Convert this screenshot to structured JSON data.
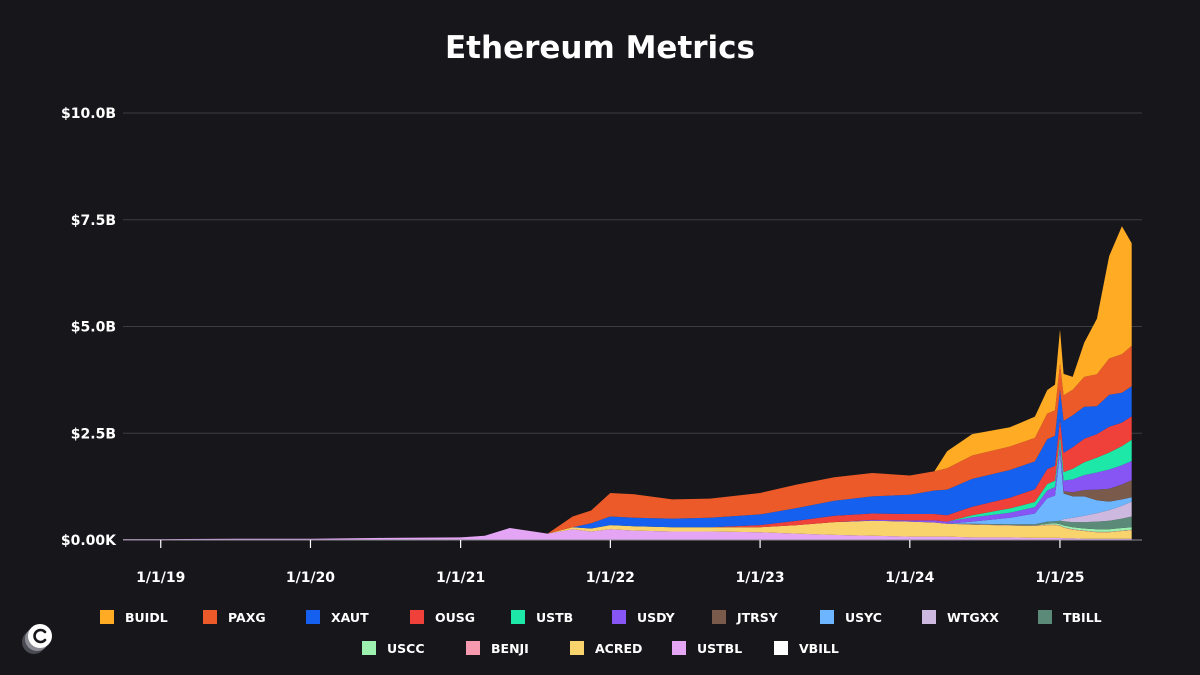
{
  "chart_data": {
    "type": "area",
    "title": "Ethereum Metrics",
    "xlabel": "",
    "ylabel": "",
    "stacked": true,
    "x_tick_labels": [
      "1/1/19",
      "1/1/20",
      "1/1/21",
      "1/1/22",
      "1/1/23",
      "1/1/24",
      "1/1/25"
    ],
    "y_tick_labels": [
      "$0.00K",
      "$2.5B",
      "$5.0B",
      "$7.5B",
      "$10.0B"
    ],
    "y_ticks": [
      0,
      2.5,
      5,
      7.5,
      10
    ],
    "ylim": [
      0,
      10
    ],
    "y_unit": "billions USD",
    "x": [
      "2018-10-01",
      "2019-01-01",
      "2019-07-01",
      "2020-01-01",
      "2020-07-01",
      "2021-01-01",
      "2021-03-01",
      "2021-05-01",
      "2021-08-01",
      "2021-10-01",
      "2021-11-15",
      "2022-01-01",
      "2022-03-01",
      "2022-06-01",
      "2022-09-01",
      "2023-01-01",
      "2023-04-01",
      "2023-07-01",
      "2023-10-01",
      "2024-01-01",
      "2024-03-01",
      "2024-04-01",
      "2024-06-01",
      "2024-09-01",
      "2024-11-01",
      "2024-12-01",
      "2024-12-20",
      "2025-01-01",
      "2025-01-10",
      "2025-02-01",
      "2025-03-01",
      "2025-04-01",
      "2025-05-01",
      "2025-06-01",
      "2025-06-25"
    ],
    "grid": true,
    "legend_position": "bottom",
    "series": [
      {
        "name": "USTBL",
        "color": "#e4a5f5",
        "values": [
          0.02,
          0.02,
          0.03,
          0.03,
          0.05,
          0.06,
          0.1,
          0.28,
          0.15,
          0.25,
          0.2,
          0.25,
          0.22,
          0.2,
          0.2,
          0.18,
          0.15,
          0.12,
          0.1,
          0.08,
          0.08,
          0.08,
          0.06,
          0.06,
          0.05,
          0.05,
          0.05,
          0.05,
          0.04,
          0.04,
          0.03,
          0.03,
          0.03,
          0.03,
          0.03
        ]
      },
      {
        "name": "ACRED",
        "color": "#f9d36b",
        "values": [
          0,
          0,
          0,
          0,
          0,
          0,
          0,
          0,
          0,
          0.05,
          0.07,
          0.1,
          0.1,
          0.1,
          0.1,
          0.12,
          0.2,
          0.3,
          0.35,
          0.35,
          0.33,
          0.3,
          0.3,
          0.28,
          0.28,
          0.3,
          0.3,
          0.28,
          0.25,
          0.2,
          0.18,
          0.15,
          0.15,
          0.18,
          0.2
        ]
      },
      {
        "name": "BENJI",
        "color": "#f79aaf",
        "values": [
          0,
          0,
          0,
          0,
          0,
          0,
          0,
          0,
          0,
          0,
          0,
          0,
          0,
          0,
          0,
          0,
          0,
          0,
          0,
          0,
          0,
          0,
          0.01,
          0.01,
          0.01,
          0.01,
          0.01,
          0.01,
          0.01,
          0.01,
          0.01,
          0.01,
          0.01,
          0.01,
          0.01
        ]
      },
      {
        "name": "USCC",
        "color": "#9df2b0",
        "values": [
          0,
          0,
          0,
          0,
          0,
          0,
          0,
          0,
          0,
          0,
          0,
          0,
          0,
          0,
          0,
          0,
          0,
          0,
          0,
          0,
          0,
          0,
          0,
          0,
          0,
          0.02,
          0.03,
          0.03,
          0.04,
          0.05,
          0.05,
          0.06,
          0.06,
          0.06,
          0.06
        ]
      },
      {
        "name": "TBILL",
        "color": "#5b8a78",
        "values": [
          0,
          0,
          0,
          0,
          0,
          0,
          0,
          0,
          0,
          0,
          0,
          0,
          0,
          0,
          0,
          0,
          0,
          0,
          0,
          0,
          0,
          0,
          0.01,
          0.02,
          0.03,
          0.05,
          0.05,
          0.08,
          0.1,
          0.12,
          0.15,
          0.18,
          0.2,
          0.22,
          0.25
        ]
      },
      {
        "name": "WTGXX",
        "color": "#cdb8e0",
        "values": [
          0,
          0,
          0,
          0,
          0,
          0,
          0,
          0,
          0,
          0,
          0,
          0,
          0,
          0,
          0,
          0,
          0,
          0,
          0,
          0,
          0,
          0,
          0,
          0,
          0,
          0,
          0,
          0,
          0.05,
          0.1,
          0.15,
          0.2,
          0.25,
          0.3,
          0.35
        ]
      },
      {
        "name": "USYC",
        "color": "#6eb5ff",
        "values": [
          0,
          0,
          0,
          0,
          0,
          0,
          0,
          0,
          0,
          0,
          0,
          0,
          0,
          0,
          0,
          0,
          0,
          0,
          0,
          0,
          0,
          0,
          0.05,
          0.15,
          0.25,
          0.55,
          0.6,
          1.6,
          0.6,
          0.5,
          0.45,
          0.3,
          0.2,
          0.15,
          0.1
        ]
      },
      {
        "name": "JTRSY",
        "color": "#7a5a4a",
        "values": [
          0,
          0,
          0,
          0,
          0,
          0,
          0,
          0,
          0,
          0,
          0,
          0,
          0,
          0,
          0,
          0,
          0,
          0,
          0,
          0,
          0,
          0,
          0,
          0,
          0,
          0,
          0,
          0,
          0.05,
          0.1,
          0.15,
          0.25,
          0.3,
          0.35,
          0.4
        ]
      },
      {
        "name": "USDY",
        "color": "#8855f5",
        "values": [
          0,
          0,
          0,
          0,
          0,
          0,
          0,
          0,
          0,
          0,
          0,
          0,
          0,
          0,
          0,
          0,
          0,
          0,
          0.02,
          0.03,
          0.05,
          0.05,
          0.1,
          0.12,
          0.15,
          0.18,
          0.2,
          0.2,
          0.25,
          0.3,
          0.35,
          0.4,
          0.45,
          0.45,
          0.45
        ]
      },
      {
        "name": "USTB",
        "color": "#1ee8a8",
        "values": [
          0,
          0,
          0,
          0,
          0,
          0,
          0,
          0,
          0,
          0,
          0,
          0,
          0,
          0,
          0,
          0,
          0,
          0,
          0,
          0,
          0,
          0,
          0.05,
          0.1,
          0.12,
          0.15,
          0.15,
          0.18,
          0.2,
          0.25,
          0.3,
          0.35,
          0.4,
          0.45,
          0.5
        ]
      },
      {
        "name": "OUSG",
        "color": "#f0403a",
        "values": [
          0,
          0,
          0,
          0,
          0,
          0,
          0,
          0,
          0,
          0,
          0,
          0,
          0,
          0,
          0,
          0.05,
          0.1,
          0.15,
          0.15,
          0.15,
          0.15,
          0.15,
          0.2,
          0.25,
          0.3,
          0.35,
          0.35,
          0.4,
          0.45,
          0.5,
          0.55,
          0.55,
          0.6,
          0.55,
          0.55
        ]
      },
      {
        "name": "XAUT",
        "color": "#1660f0",
        "values": [
          0,
          0,
          0,
          0,
          0,
          0,
          0,
          0,
          0,
          0,
          0.12,
          0.2,
          0.2,
          0.2,
          0.22,
          0.25,
          0.3,
          0.35,
          0.4,
          0.45,
          0.55,
          0.6,
          0.65,
          0.65,
          0.65,
          0.7,
          0.7,
          0.7,
          0.75,
          0.75,
          0.75,
          0.65,
          0.75,
          0.7,
          0.7
        ]
      },
      {
        "name": "PAXG",
        "color": "#eb5a28",
        "values": [
          0,
          0,
          0,
          0,
          0,
          0,
          0,
          0,
          0,
          0.25,
          0.3,
          0.55,
          0.55,
          0.45,
          0.45,
          0.5,
          0.55,
          0.55,
          0.55,
          0.45,
          0.45,
          0.5,
          0.55,
          0.55,
          0.55,
          0.6,
          0.6,
          0.6,
          0.6,
          0.6,
          0.7,
          0.75,
          0.85,
          0.9,
          0.95
        ]
      },
      {
        "name": "BUIDL",
        "color": "#ffac24",
        "values": [
          0,
          0,
          0,
          0,
          0,
          0,
          0,
          0,
          0,
          0,
          0,
          0,
          0,
          0,
          0,
          0,
          0,
          0,
          0,
          0,
          0,
          0.4,
          0.5,
          0.45,
          0.5,
          0.55,
          0.6,
          0.8,
          0.5,
          0.3,
          0.8,
          1.3,
          2.4,
          3.0,
          2.4
        ]
      },
      {
        "name": "VBILL",
        "color": "#ffffff",
        "values": [
          0,
          0,
          0,
          0,
          0,
          0,
          0,
          0,
          0,
          0,
          0,
          0,
          0,
          0,
          0,
          0,
          0,
          0,
          0,
          0,
          0,
          0,
          0,
          0,
          0,
          0,
          0,
          0,
          0,
          0,
          0,
          0,
          0,
          0,
          0
        ]
      }
    ]
  },
  "legend": {
    "rows": [
      [
        "BUIDL",
        "PAXG",
        "XAUT",
        "OUSG",
        "USTB",
        "USDY",
        "JTRSY",
        "USYC",
        "WTGXX",
        "TBILL"
      ],
      [
        "USCC",
        "BENJI",
        "ACRED",
        "USTBL",
        "VBILL"
      ]
    ]
  },
  "logo": {
    "icon": "c-logo-icon"
  }
}
